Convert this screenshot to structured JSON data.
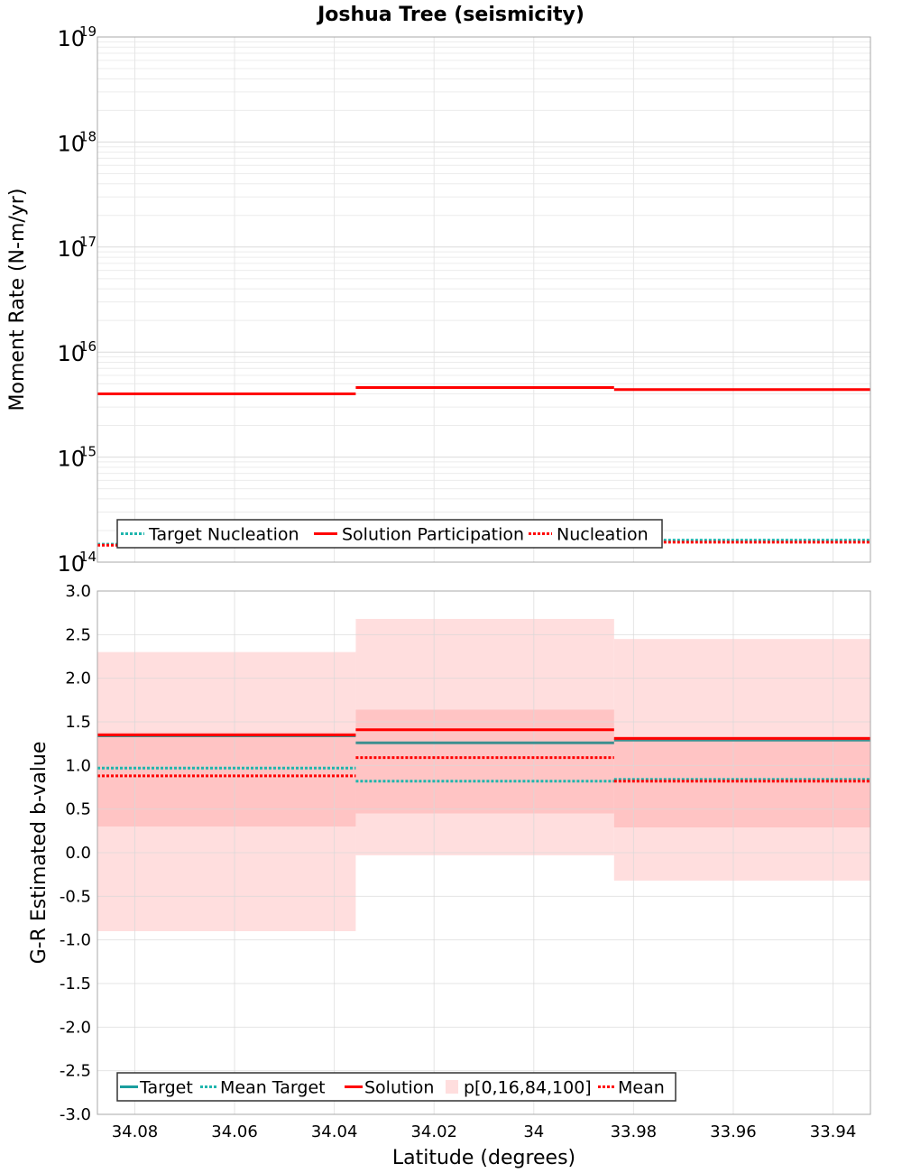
{
  "title": "Joshua Tree (seismicity)",
  "chart_data": [
    {
      "type": "line",
      "name": "moment-rate",
      "ylabel": "Moment Rate (N-m/yr)",
      "yscale": "log",
      "ylim_exp": [
        14,
        19
      ],
      "y_tick_exponents": [
        14,
        15,
        16,
        17,
        18,
        19
      ],
      "y_tick_base": "10",
      "xlim": [
        34.0875,
        33.9325
      ],
      "bins": [
        [
          34.0875,
          34.0357
        ],
        [
          34.0357,
          33.9839
        ],
        [
          33.9839,
          33.9325
        ]
      ],
      "grid": true,
      "legend_position": "bottom-left",
      "legend": [
        {
          "label": "Target Nucleation",
          "color": "#1fb5ad",
          "style": "dotted"
        },
        {
          "label": "Solution Participation",
          "color": "#ff0000",
          "style": "solid"
        },
        {
          "label": "Nucleation",
          "color": "#ff0000",
          "style": "dotted"
        }
      ],
      "series": [
        {
          "name": "Solution Participation",
          "color": "#ff0000",
          "style": "solid",
          "values": [
            4000000000000000.0,
            4600000000000000.0,
            4400000000000000.0
          ]
        },
        {
          "name": "Target Nucleation",
          "color": "#1fb5ad",
          "style": "dotted",
          "values": [
            148000000000000.0,
            148000000000000.0,
            162000000000000.0
          ]
        },
        {
          "name": "Nucleation",
          "color": "#ff0000",
          "style": "dotted",
          "values": [
            145000000000000.0,
            145000000000000.0,
            155000000000000.0
          ]
        }
      ]
    },
    {
      "type": "line",
      "name": "b-value",
      "ylabel": "G-R Estimated b-value",
      "xlabel": "Latitude (degrees)",
      "ylim": [
        -3.0,
        3.0
      ],
      "y_ticks": [
        "-3.0",
        "-2.5",
        "-2.0",
        "-1.5",
        "-1.0",
        "-0.5",
        "0.0",
        "0.5",
        "1.0",
        "1.5",
        "2.0",
        "2.5",
        "3.0"
      ],
      "x_ticks": [
        "34.08",
        "34.06",
        "34.04",
        "34.02",
        "34",
        "33.98",
        "33.96",
        "33.94"
      ],
      "xlim": [
        34.0875,
        33.9325
      ],
      "bins": [
        [
          34.0875,
          34.0357
        ],
        [
          34.0357,
          33.9839
        ],
        [
          33.9839,
          33.9325
        ]
      ],
      "grid": true,
      "legend_position": "bottom-left",
      "legend": [
        {
          "label": "Target",
          "color": "#1a9e9e",
          "style": "solid"
        },
        {
          "label": "Mean Target",
          "color": "#1fb5ad",
          "style": "dotted"
        },
        {
          "label": "Solution",
          "color": "#ff0000",
          "style": "solid"
        },
        {
          "label": "p[0,16,84,100]",
          "color": "#ffdede",
          "style": "box"
        },
        {
          "label": "Mean",
          "color": "#ff0000",
          "style": "dotted"
        }
      ],
      "bands": {
        "outer": {
          "low": [
            -0.9,
            -0.03,
            -0.32
          ],
          "high": [
            2.3,
            2.68,
            2.45
          ],
          "color": "#ffdede"
        },
        "inner": {
          "low": [
            0.3,
            0.45,
            0.29
          ],
          "high": [
            1.38,
            1.64,
            1.33
          ],
          "color": "#ffc4c4"
        }
      },
      "series": [
        {
          "name": "Target",
          "color": "#3d8f8f",
          "style": "solid",
          "values": [
            1.34,
            1.26,
            1.29
          ]
        },
        {
          "name": "Solution",
          "color": "#ff0000",
          "style": "solid",
          "values": [
            1.35,
            1.41,
            1.31
          ]
        },
        {
          "name": "Mean Target",
          "color": "#1fb5ad",
          "style": "dotted",
          "values": [
            0.97,
            0.82,
            0.84
          ]
        },
        {
          "name": "Mean",
          "color": "#ff0000",
          "style": "dotted",
          "values": [
            0.88,
            1.09,
            0.82
          ]
        }
      ]
    }
  ]
}
